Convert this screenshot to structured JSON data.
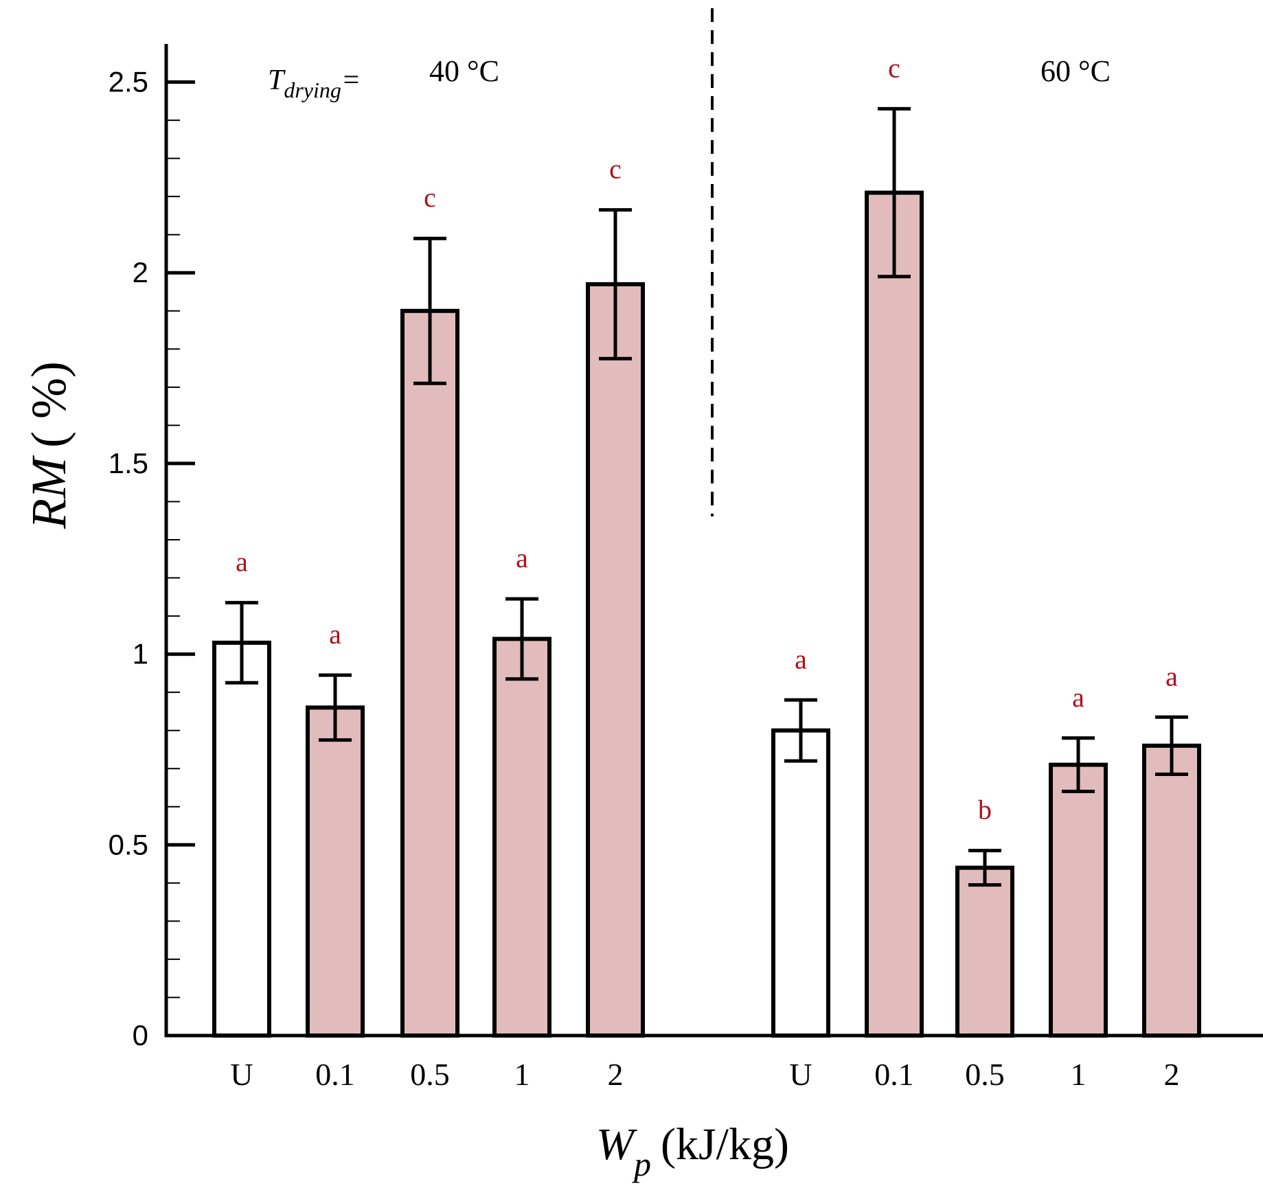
{
  "chart_data": {
    "type": "bar",
    "ylabel": "RM ( %)",
    "ylabel_main": "RM",
    "ylabel_unit": "( %)",
    "xlabel_main": "W",
    "xlabel_sub": "p",
    "xlabel_unit": "(kJ/kg)",
    "ylim": [
      0,
      2.6
    ],
    "yticks": [
      0,
      0.5,
      1,
      1.5,
      2,
      2.5
    ],
    "ytick_labels": [
      "0",
      "0.5",
      "1",
      "1.5",
      "2",
      "2.5"
    ],
    "temperature_prefix_main": "T",
    "temperature_prefix_sub": "drying",
    "temperature_prefix_eq": "=",
    "groups": [
      {
        "temperature": "40 °C",
        "categories": [
          "U",
          "0.1",
          "0.5",
          "1",
          "2"
        ],
        "values": [
          1.03,
          0.86,
          1.9,
          1.04,
          1.97
        ],
        "errors": [
          0.105,
          0.085,
          0.19,
          0.105,
          0.195
        ],
        "letters": [
          "a",
          "a",
          "c",
          "a",
          "c"
        ],
        "untreated": [
          true,
          false,
          false,
          false,
          false
        ]
      },
      {
        "temperature": "60 °C",
        "categories": [
          "U",
          "0.1",
          "0.5",
          "1",
          "2"
        ],
        "values": [
          0.8,
          2.21,
          0.44,
          0.71,
          0.76
        ],
        "errors": [
          0.08,
          0.22,
          0.045,
          0.07,
          0.075
        ],
        "letters": [
          "a",
          "c",
          "b",
          "a",
          "a"
        ],
        "untreated": [
          true,
          false,
          false,
          false,
          false
        ]
      }
    ],
    "colors": {
      "treated_fill": "#e2bcbc",
      "untreated_fill": "#ffffff",
      "letter": "#b01018"
    }
  }
}
